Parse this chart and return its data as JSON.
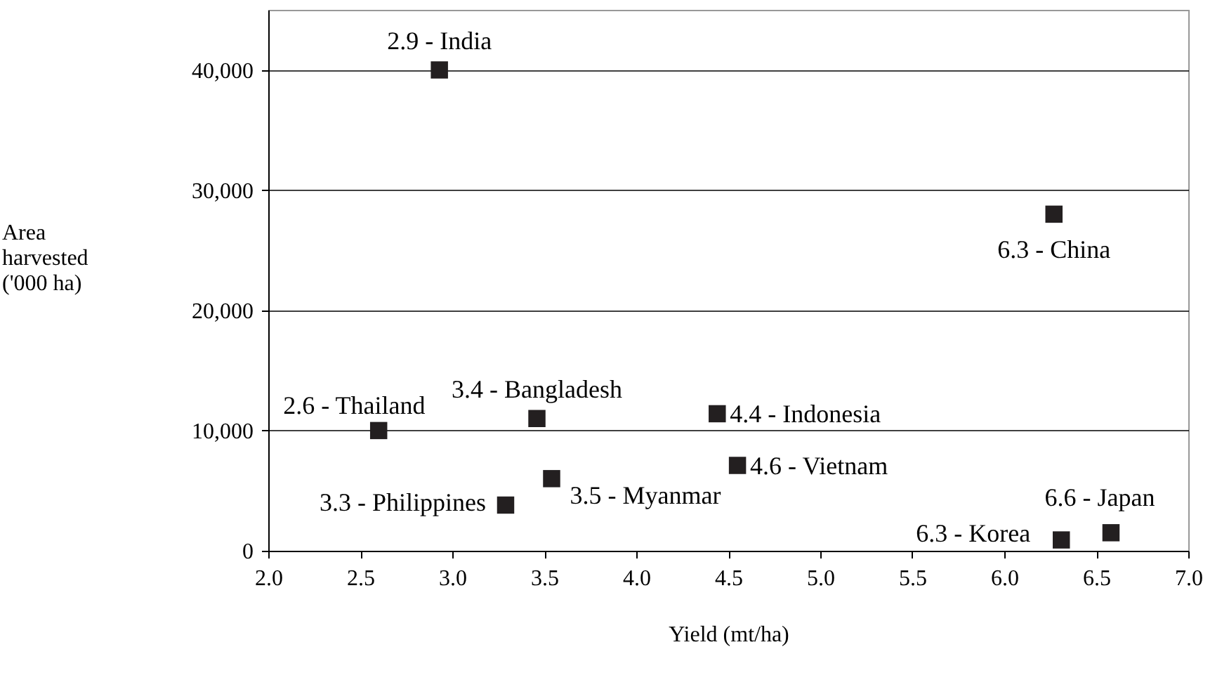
{
  "chart_data": {
    "type": "scatter",
    "xlabel": "Yield (mt/ha)",
    "ylabel": "Area harvested ('000 ha)",
    "x": [
      2.93,
      6.27,
      2.6,
      3.46,
      4.44,
      4.55,
      3.29,
      3.54,
      6.31,
      6.58
    ],
    "series": [
      {
        "color": "#231f20",
        "values": [
          40000,
          28000,
          10000,
          11000,
          11400,
          7100,
          3800,
          6000,
          900,
          1500
        ]
      }
    ],
    "annotations": [
      {
        "text": "2.9 - India",
        "x": 2.93,
        "y": 40000
      },
      {
        "text": "6.3 - China",
        "x": 6.27,
        "y": 28000
      },
      {
        "text": "2.6 - Thailand",
        "x": 2.6,
        "y": 10000
      },
      {
        "text": "3.4 - Bangladesh",
        "x": 3.46,
        "y": 11000
      },
      {
        "text": "4.4 - Indonesia",
        "x": 4.44,
        "y": 11400
      },
      {
        "text": "4.6 - Vietnam",
        "x": 4.55,
        "y": 7100
      },
      {
        "text": "3.3 - Philippines",
        "x": 3.29,
        "y": 3800
      },
      {
        "text": "3.5 - Myanmar",
        "x": 3.54,
        "y": 6000
      },
      {
        "text": "6.3 - Korea",
        "x": 6.31,
        "y": 900
      },
      {
        "text": "6.6 - Japan",
        "x": 6.58,
        "y": 1500
      }
    ],
    "xlim": [
      2.0,
      7.0
    ],
    "xticks": [
      {
        "value": 2,
        "label": "2.0"
      },
      2.5,
      {
        "value": 3,
        "label": "3.0"
      },
      3.5,
      {
        "value": 4,
        "label": "4.0"
      },
      4.5,
      {
        "value": 5,
        "label": "5.0"
      },
      5.5,
      {
        "value": 6,
        "label": "6.0"
      },
      6.5,
      {
        "value": 7,
        "label": "7.0"
      }
    ],
    "ylim": [
      0,
      45000
    ],
    "yticks": [
      0,
      {
        "value": 10000,
        "label": "10,000"
      },
      {
        "value": 20000,
        "label": "20,000"
      },
      {
        "value": 30000,
        "label": "30,000"
      },
      {
        "value": 40000,
        "label": "40,000"
      }
    ],
    "grid": "y",
    "marker": "square"
  }
}
